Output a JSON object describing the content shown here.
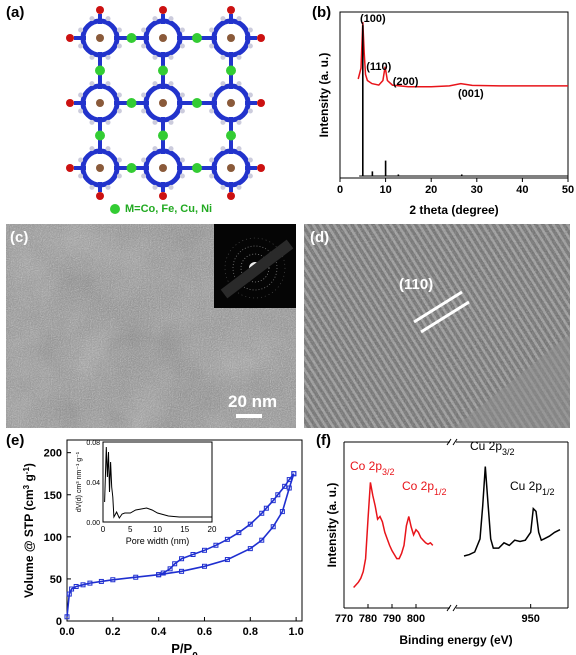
{
  "panels": {
    "a": {
      "label": "(a)",
      "legend": "M=Co, Fe, Cu, Ni",
      "colors": {
        "atom_c": "#2233cc",
        "atom_o": "#cc1111",
        "atom_h": "#ccccdd",
        "metal": "#33cc33",
        "center": "#8a5a3a"
      }
    },
    "b": {
      "label": "(b)",
      "peaks": [
        "(100)",
        "(110)",
        "(200)",
        "(001)"
      ],
      "chart_data": {
        "type": "line",
        "xlabel": "2 theta (degree)",
        "ylabel": "Intensity (a. u.)",
        "xlim": [
          0,
          50
        ],
        "xticks": [
          "0",
          "10",
          "20",
          "30",
          "40",
          "50"
        ],
        "series": [
          {
            "color": "#e8141a",
            "x": [
              4.0,
              4.6,
              5.0,
              5.3,
              5.6,
              6.0,
              7.0,
              8.5,
              9.4,
              9.9,
              10.4,
              11.5,
              15,
              20,
              24,
              26.5,
              29,
              35,
              40,
              45,
              50
            ],
            "y": [
              0.63,
              0.7,
              1.0,
              0.8,
              0.66,
              0.62,
              0.6,
              0.59,
              0.62,
              0.71,
              0.62,
              0.59,
              0.58,
              0.58,
              0.585,
              0.6,
              0.588,
              0.585,
              0.585,
              0.585,
              0.585
            ]
          },
          {
            "color": "#000000",
            "sticks": [
              [
                5.0,
                0.98
              ],
              [
                7.1,
                0.03
              ],
              [
                10.0,
                0.1
              ],
              [
                12.8,
                0.01
              ],
              [
                26.7,
                0.01
              ]
            ],
            "baseline": 0.0
          }
        ]
      }
    },
    "c": {
      "label": "(c)",
      "scalebar": "20 nm"
    },
    "d": {
      "label": "(d)",
      "plane": "(110)"
    },
    "e": {
      "label": "(e)",
      "chart_data": {
        "type": "line",
        "xlabel": "P/P",
        "xlabel_sub": "0",
        "ylabel": "Volume @ STP (cm",
        "ylabel_sup": "3",
        "ylabel_mid": " g",
        "ylabel_sup2": "-1",
        "ylabel_end": ")",
        "xlim": [
          0,
          1.0
        ],
        "ylim": [
          0,
          200
        ],
        "xticks": [
          "0.0",
          "0.2",
          "0.4",
          "0.6",
          "0.8",
          "1.0"
        ],
        "yticks": [
          "0",
          "50",
          "100",
          "150",
          "200"
        ],
        "color": "#1f2fd0",
        "adsorption": {
          "x": [
            0.0,
            0.01,
            0.02,
            0.04,
            0.07,
            0.1,
            0.15,
            0.2,
            0.3,
            0.4,
            0.5,
            0.6,
            0.7,
            0.8,
            0.85,
            0.9,
            0.94,
            0.97,
            0.99
          ],
          "y": [
            5,
            32,
            38,
            41,
            43,
            45,
            47,
            49,
            52,
            55,
            59,
            65,
            73,
            86,
            96,
            112,
            130,
            158,
            175
          ]
        },
        "desorption": {
          "x": [
            0.99,
            0.97,
            0.95,
            0.92,
            0.9,
            0.87,
            0.85,
            0.8,
            0.75,
            0.7,
            0.65,
            0.6,
            0.55,
            0.5,
            0.47,
            0.45,
            0.42,
            0.4
          ],
          "y": [
            175,
            168,
            160,
            150,
            143,
            134,
            128,
            115,
            105,
            97,
            90,
            84,
            79,
            74,
            68,
            62,
            57,
            55
          ]
        },
        "inset": {
          "xlabel": "Pore width (nm)",
          "ylabel": "dV(d) cm³ nm⁻¹ g⁻¹",
          "xlim": [
            0,
            20
          ],
          "ylim": [
            0,
            0.08
          ],
          "xticks": [
            "0",
            "5",
            "10",
            "15",
            "20"
          ],
          "yticks": [
            "0.00",
            "0.04",
            "0.08"
          ],
          "x": [
            0.3,
            0.6,
            0.8,
            1.0,
            1.2,
            1.4,
            1.6,
            1.8,
            2.0,
            2.5,
            3,
            3.5,
            4,
            5,
            6,
            7,
            8,
            9,
            10,
            12,
            14,
            16,
            18,
            20
          ],
          "y": [
            0.02,
            0.075,
            0.045,
            0.07,
            0.03,
            0.06,
            0.035,
            0.025,
            0.005,
            0.01,
            0.004,
            0.008,
            0.009,
            0.009,
            0.012,
            0.013,
            0.014,
            0.012,
            0.009,
            0.006,
            0.005,
            0.005,
            0.005,
            0.005
          ]
        }
      }
    },
    "f": {
      "label": "(f)",
      "chart_data": {
        "type": "line",
        "xlabel": "Binding energy (eV)",
        "ylabel": "Intensity (a. u.)",
        "xticks": [
          "770",
          "780",
          "790",
          "800",
          "950"
        ],
        "annotations": [
          {
            "text": "Co 2p",
            "sub": "3/2",
            "color": "#e8141a"
          },
          {
            "text": "Co 2p",
            "sub": "1/2",
            "color": "#e8141a"
          },
          {
            "text": "Cu 2p",
            "sub": "3/2",
            "color": "#000000"
          },
          {
            "text": "Cu 2p",
            "sub": "1/2",
            "color": "#000000"
          }
        ],
        "series": [
          {
            "color": "#e8141a",
            "x": [
              774,
              775,
              776,
              777,
              778,
              779,
              780,
              781,
              782,
              783,
              784,
              785,
              786,
              787,
              788,
              789,
              790,
              791,
              792,
              793,
              794,
              795,
              796,
              797,
              798,
              799,
              800,
              801,
              802,
              803,
              804,
              805,
              806,
              807
            ],
            "y": [
              0.08,
              0.1,
              0.12,
              0.15,
              0.2,
              0.3,
              0.6,
              0.88,
              0.78,
              0.7,
              0.6,
              0.62,
              0.58,
              0.5,
              0.45,
              0.4,
              0.36,
              0.33,
              0.3,
              0.3,
              0.34,
              0.4,
              0.55,
              0.62,
              0.54,
              0.48,
              0.52,
              0.5,
              0.46,
              0.44,
              0.42,
              0.41,
              0.42,
              0.4
            ]
          },
          {
            "color": "#000000",
            "x": [
              925,
              927,
              929,
              931,
              932,
              933,
              934,
              935,
              936,
              938,
              940,
              942,
              944,
              946,
              948,
              950,
              951,
              952,
              953,
              954,
              955,
              957,
              959,
              961
            ],
            "y": [
              0.32,
              0.33,
              0.35,
              0.45,
              0.7,
              1.0,
              0.72,
              0.45,
              0.38,
              0.38,
              0.42,
              0.4,
              0.44,
              0.43,
              0.44,
              0.5,
              0.68,
              0.66,
              0.5,
              0.44,
              0.45,
              0.47,
              0.5,
              0.52
            ]
          }
        ]
      }
    }
  }
}
